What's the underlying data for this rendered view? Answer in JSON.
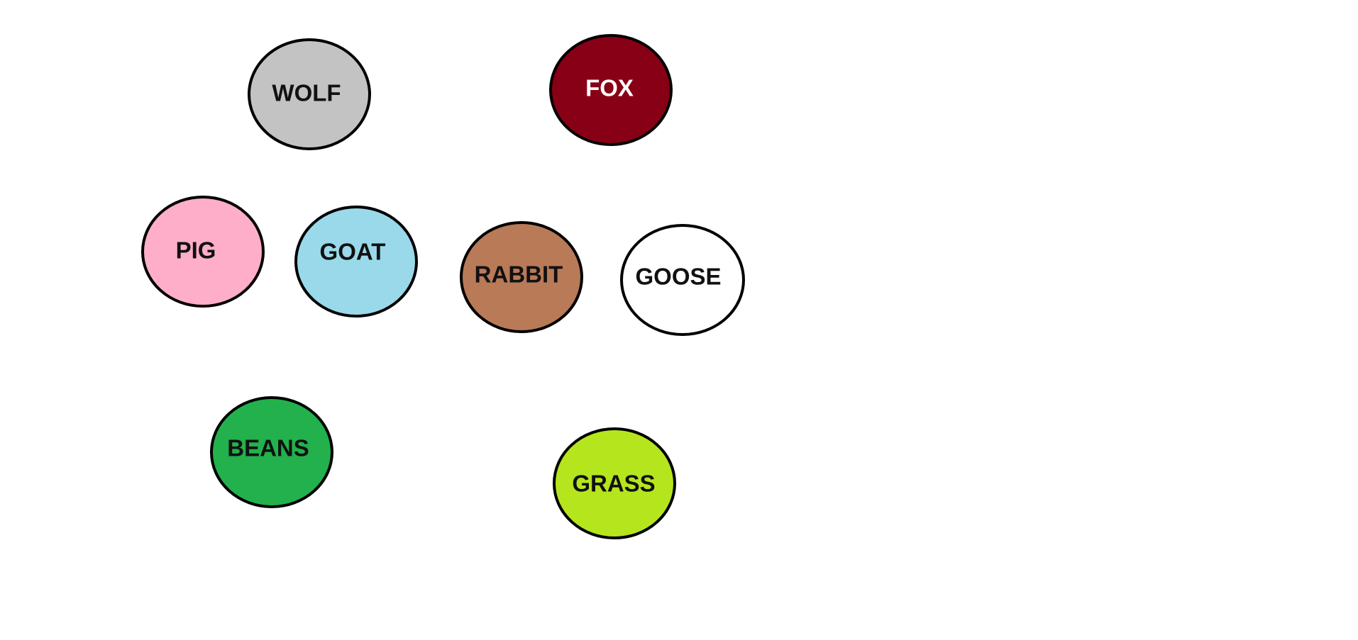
{
  "nodes": [
    {
      "id": "wolf",
      "label": "WOLF",
      "fill": "#c3c3c3",
      "text_color": "#111111"
    },
    {
      "id": "fox",
      "label": "FOX",
      "fill": "#880015",
      "text_color": "#ffffff"
    },
    {
      "id": "pig",
      "label": "PIG",
      "fill": "#ffaec9",
      "text_color": "#111111"
    },
    {
      "id": "goat",
      "label": "GOAT",
      "fill": "#99d9ea",
      "text_color": "#111111"
    },
    {
      "id": "rabbit",
      "label": "RABBIT",
      "fill": "#b97a57",
      "text_color": "#111111"
    },
    {
      "id": "goose",
      "label": "GOOSE",
      "fill": "#ffffff",
      "text_color": "#111111"
    },
    {
      "id": "beans",
      "label": "BEANS",
      "fill": "#22b14c",
      "text_color": "#111111"
    },
    {
      "id": "grass",
      "label": "GRASS",
      "fill": "#b5e61d",
      "text_color": "#111111"
    }
  ],
  "outline_color": "#000000"
}
